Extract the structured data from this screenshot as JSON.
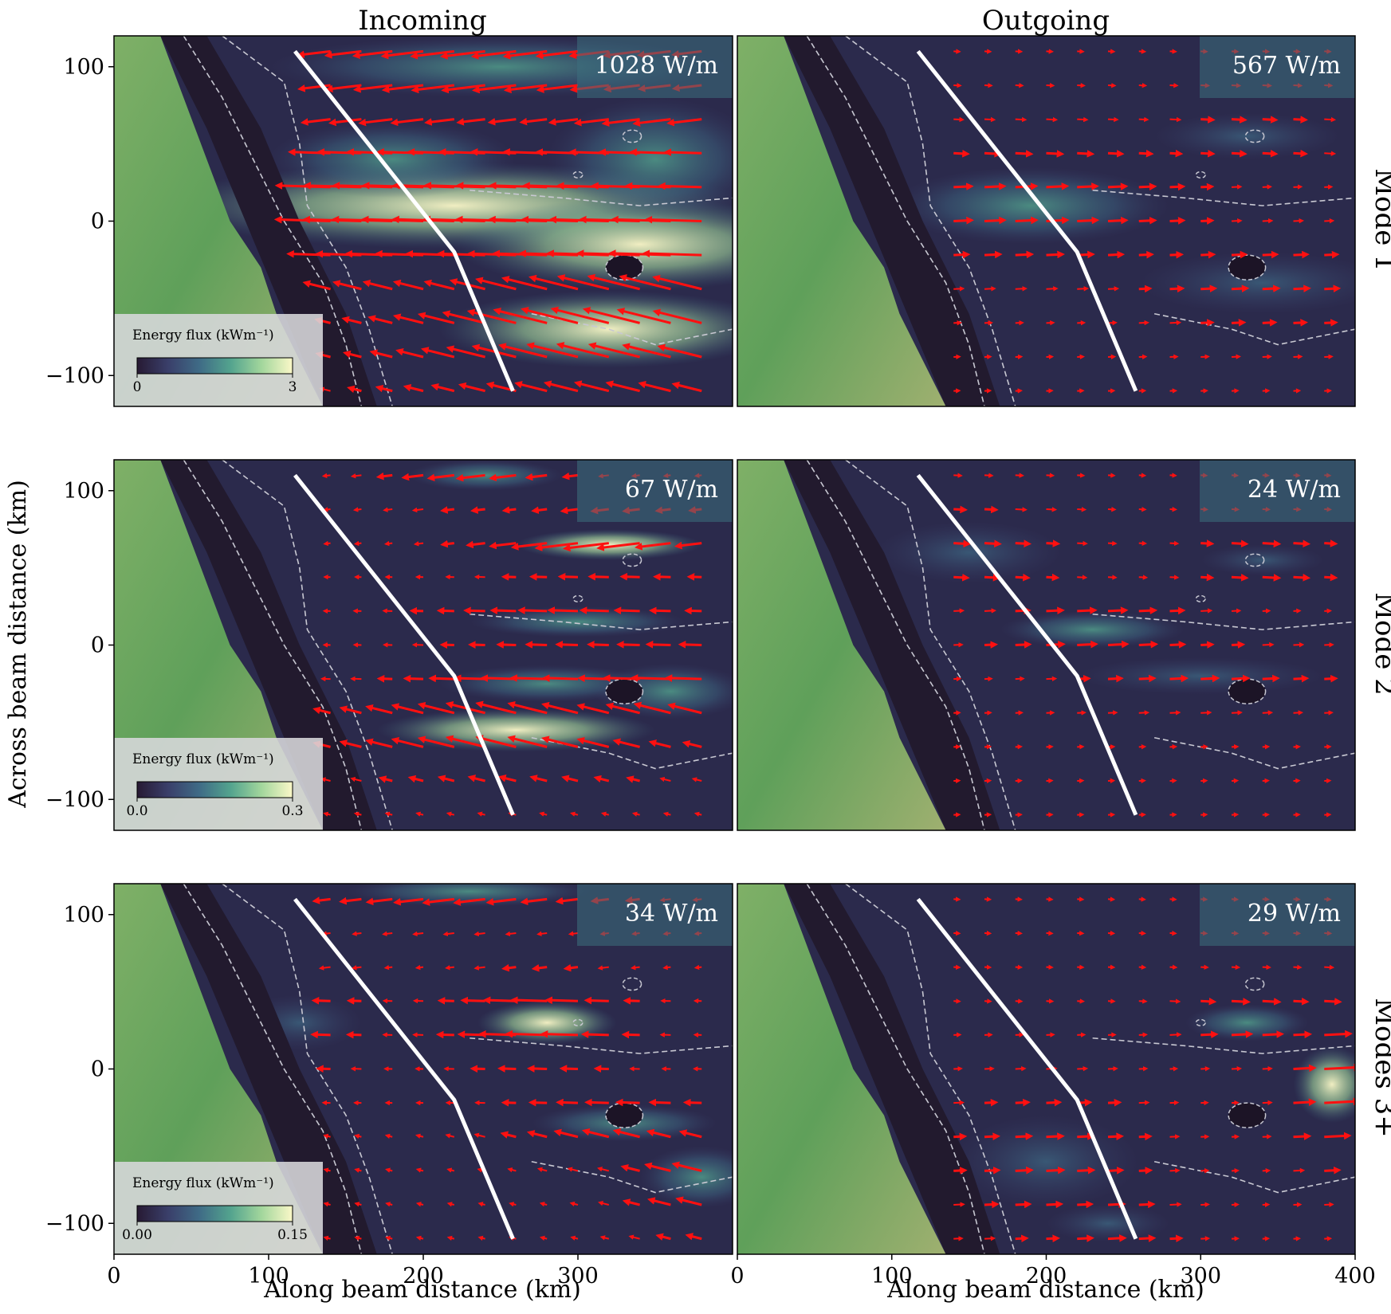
{
  "figure": {
    "column_titles": [
      "Incoming",
      "Outgoing"
    ],
    "row_labels": [
      "Mode 1",
      "Mode 2",
      "Modes 3+"
    ],
    "xlabel": "Along beam distance (km)",
    "ylabel": "Across beam distance (km)",
    "colorbar_title": "Energy flux (kWm⁻¹)",
    "colors": {
      "arrows": "#ff1010",
      "section_line": "#ffffff",
      "contours": "#c8c8d2",
      "land": "#5fa05a",
      "colormap": [
        "#271a33",
        "#3a3f6a",
        "#3f6b86",
        "#53a38e",
        "#a2d69c",
        "#fbf8c8"
      ]
    }
  },
  "chart_data": [
    {
      "type": "heatmap",
      "title": "Incoming",
      "row": "Mode 1",
      "total_flux_label": "1028 W/m",
      "xlim": [
        0,
        400
      ],
      "ylim": [
        -120,
        120
      ],
      "xticks": [
        0,
        100,
        200,
        300
      ],
      "yticks": [
        -100,
        0,
        100
      ],
      "colorbar": {
        "range": [
          0,
          3
        ],
        "tick_labels": [
          "0",
          "3"
        ]
      },
      "section_line": {
        "x": [
          117,
          220,
          258
        ],
        "y": [
          110,
          -20,
          -110
        ]
      }
    },
    {
      "type": "heatmap",
      "title": "Outgoing",
      "row": "Mode 1",
      "total_flux_label": "567 W/m",
      "xlim": [
        0,
        400
      ],
      "ylim": [
        -120,
        120
      ],
      "section_line": {
        "x": [
          117,
          220,
          258
        ],
        "y": [
          110,
          -20,
          -110
        ]
      }
    },
    {
      "type": "heatmap",
      "title": "Incoming",
      "row": "Mode 2",
      "total_flux_label": "67 W/m",
      "xlim": [
        0,
        400
      ],
      "ylim": [
        -120,
        120
      ],
      "xticks": [
        0,
        100,
        200,
        300
      ],
      "yticks": [
        -100,
        0,
        100
      ],
      "colorbar": {
        "range": [
          0,
          0.3
        ],
        "tick_labels": [
          "0.0",
          "0.3"
        ]
      },
      "section_line": {
        "x": [
          117,
          220,
          258
        ],
        "y": [
          110,
          -20,
          -110
        ]
      }
    },
    {
      "type": "heatmap",
      "title": "Outgoing",
      "row": "Mode 2",
      "total_flux_label": "24 W/m",
      "xlim": [
        0,
        400
      ],
      "ylim": [
        -120,
        120
      ],
      "section_line": {
        "x": [
          117,
          220,
          258
        ],
        "y": [
          110,
          -20,
          -110
        ]
      }
    },
    {
      "type": "heatmap",
      "title": "Incoming",
      "row": "Modes 3+",
      "total_flux_label": "34 W/m",
      "xlim": [
        0,
        400
      ],
      "ylim": [
        -120,
        120
      ],
      "xticks": [
        0,
        100,
        200,
        300
      ],
      "yticks": [
        -100,
        0,
        100
      ],
      "colorbar": {
        "range": [
          0,
          0.15
        ],
        "tick_labels": [
          "0.00",
          "0.15"
        ]
      },
      "section_line": {
        "x": [
          117,
          220,
          258
        ],
        "y": [
          110,
          -20,
          -110
        ]
      }
    },
    {
      "type": "heatmap",
      "title": "Outgoing",
      "row": "Modes 3+",
      "total_flux_label": "29 W/m",
      "xlim": [
        0,
        400
      ],
      "ylim": [
        -120,
        120
      ],
      "xticks": [
        0,
        100,
        200,
        300,
        400
      ],
      "section_line": {
        "x": [
          117,
          220,
          258
        ],
        "y": [
          110,
          -20,
          -110
        ]
      }
    }
  ]
}
